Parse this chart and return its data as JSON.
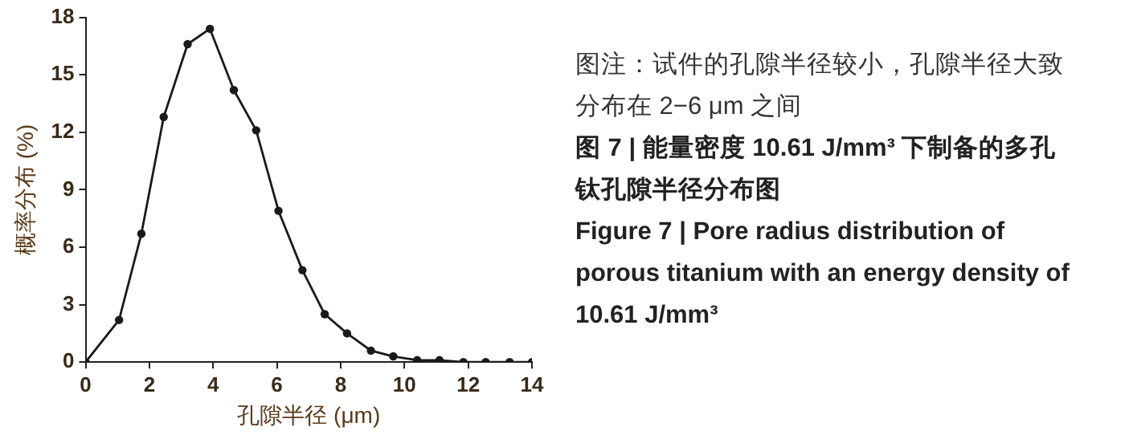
{
  "chart_data": {
    "type": "line",
    "xlabel": "孔隙半径 (μm)",
    "ylabel": "概率分布 (%)",
    "x": [
      0,
      1.05,
      1.75,
      2.45,
      3.2,
      3.9,
      4.65,
      5.35,
      6.05,
      6.8,
      7.5,
      8.2,
      8.95,
      9.65,
      10.4,
      11.1,
      11.85,
      12.55,
      13.3,
      14
    ],
    "series": [
      {
        "color": "#1a1a1a",
        "values": [
          0,
          2.2,
          6.7,
          12.8,
          16.6,
          17.4,
          14.2,
          12.1,
          7.9,
          4.8,
          2.5,
          1.5,
          0.6,
          0.3,
          0.1,
          0.1,
          0,
          0,
          0,
          0
        ]
      }
    ],
    "xlim": [
      0,
      14
    ],
    "xticks": [
      0,
      2,
      4,
      6,
      8,
      10,
      12,
      14
    ],
    "ylim": [
      0,
      18
    ],
    "yticks": [
      0,
      3,
      6,
      9,
      12,
      15,
      18
    ],
    "grid": false,
    "legend": false,
    "marker": "circle",
    "line_style": "solid",
    "annotations": [
      "图注：试件的孔隙半径较小，孔隙半径大致分布在 2−6 μm 之间",
      "图 7 | 能量密度 10.61 J/mm³ 下制备的多孔钛孔隙半径分布图",
      "Figure 7 | Pore radius distribution of porous titanium with an energy density of 10.61 J/mm³"
    ]
  }
}
